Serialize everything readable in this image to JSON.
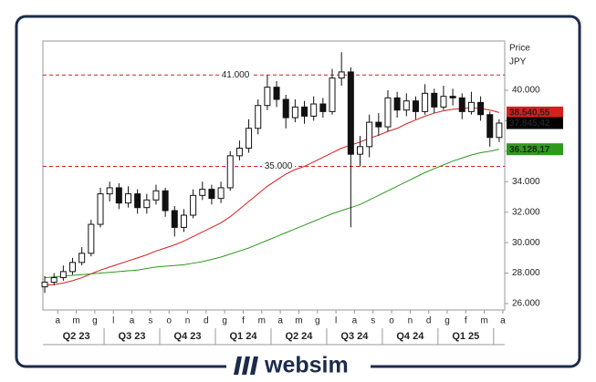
{
  "chart_data": {
    "type": "candlestick",
    "y_axis_title": [
      "Price",
      "JPY"
    ],
    "x": [
      -0.7,
      -0.2,
      0.3,
      0.8,
      1.3,
      1.8,
      2.3,
      2.8,
      3.3,
      3.8,
      4.3,
      4.8,
      5.3,
      5.8,
      6.3,
      6.8,
      7.3,
      7.8,
      8.3,
      8.8,
      9.3,
      9.8,
      10.3,
      10.8,
      11.3,
      11.8,
      12.3,
      12.8,
      13.3,
      13.8,
      14.3,
      14.8,
      15.3,
      15.8,
      16.3,
      16.8,
      17.3,
      17.8,
      18.3,
      18.8,
      19.3,
      19.8,
      20.3,
      20.8,
      21.3,
      21.8,
      22.3,
      22.8,
      23.3,
      23.8
    ],
    "open": [
      27100,
      27400,
      27700,
      28100,
      28700,
      29300,
      31200,
      33200,
      33600,
      32600,
      33200,
      32300,
      32800,
      33400,
      32100,
      31000,
      31800,
      33100,
      33500,
      32900,
      33600,
      35700,
      36200,
      37500,
      39000,
      40200,
      39400,
      38200,
      38900,
      38300,
      39100,
      38600,
      40800,
      41200,
      35800,
      36300,
      37900,
      37600,
      39500,
      38700,
      39300,
      38600,
      39800,
      38900,
      39600,
      39500,
      38600,
      39200,
      38400,
      36900
    ],
    "high": [
      27800,
      28000,
      28500,
      29000,
      29700,
      31500,
      33600,
      34000,
      33900,
      33700,
      33500,
      33200,
      33800,
      33600,
      32400,
      32200,
      33500,
      34000,
      33800,
      34000,
      36000,
      36700,
      38100,
      39400,
      41000,
      40600,
      39700,
      39400,
      39300,
      39600,
      39500,
      41400,
      42500,
      41500,
      37000,
      38400,
      38500,
      40000,
      39900,
      39800,
      39600,
      40400,
      40100,
      40300,
      40100,
      39800,
      39900,
      39600,
      38600,
      38100
    ],
    "low": [
      26700,
      27200,
      27500,
      27900,
      28500,
      29100,
      31000,
      32700,
      32200,
      32300,
      31900,
      31900,
      32500,
      31700,
      30400,
      30700,
      31600,
      32800,
      32500,
      32600,
      33400,
      35400,
      35900,
      37100,
      38700,
      38900,
      37500,
      37900,
      37800,
      38000,
      38200,
      38400,
      40300,
      31000,
      35000,
      35600,
      37000,
      37300,
      38200,
      38300,
      38100,
      38400,
      38500,
      38700,
      39000,
      38100,
      38400,
      38000,
      36300,
      36600
    ],
    "close": [
      27400,
      27700,
      28100,
      28700,
      29300,
      31200,
      33200,
      33600,
      32600,
      33200,
      32300,
      32800,
      33400,
      32100,
      31000,
      31800,
      33100,
      33500,
      32900,
      33600,
      35700,
      36200,
      37500,
      39000,
      40200,
      39400,
      38200,
      38900,
      38300,
      39100,
      38600,
      40800,
      41200,
      35800,
      36300,
      37900,
      37600,
      39500,
      38700,
      39300,
      38600,
      39800,
      38900,
      39600,
      39500,
      38600,
      39200,
      38400,
      36900,
      37845
    ],
    "close_label": "37.845,42",
    "up_color": "#ffffff",
    "down_color": "#111111",
    "wick_color": "#111111",
    "close_box_color": "#000000",
    "series": [
      {
        "color": "#d81e1e",
        "last_label": "38.540,55",
        "values": [
          27200,
          27250,
          27350,
          27500,
          27700,
          27950,
          28200,
          28400,
          28600,
          28800,
          29000,
          29200,
          29450,
          29650,
          29850,
          30100,
          30400,
          30700,
          31000,
          31300,
          31700,
          32200,
          32700,
          33200,
          33700,
          34100,
          34500,
          34800,
          35000,
          35300,
          35600,
          35900,
          36200,
          36400,
          36600,
          36850,
          37050,
          37300,
          37500,
          37800,
          38050,
          38300,
          38500,
          38650,
          38750,
          38800,
          38850,
          38800,
          38700,
          38540.55
        ]
      },
      {
        "color": "#2e9a1c",
        "last_label": "36.128,17",
        "values": [
          27700,
          27750,
          27800,
          27850,
          27900,
          27950,
          28000,
          28050,
          28100,
          28150,
          28200,
          28300,
          28400,
          28450,
          28500,
          28550,
          28650,
          28750,
          28900,
          29050,
          29250,
          29450,
          29650,
          29900,
          30150,
          30400,
          30650,
          30900,
          31150,
          31400,
          31650,
          31900,
          32100,
          32300,
          32500,
          32800,
          33100,
          33400,
          33700,
          34000,
          34300,
          34600,
          34850,
          35100,
          35350,
          35550,
          35750,
          35900,
          36000,
          36128.17
        ]
      }
    ],
    "hlines": [
      {
        "value": 41000,
        "label": "41.000",
        "color": "#d81e1e"
      },
      {
        "value": 35000,
        "label": "35.000",
        "color": "#d81e1e"
      }
    ],
    "xlim": [
      -0.8,
      24.1
    ],
    "xticks": [
      {
        "value": 0,
        "label": "a"
      },
      {
        "value": 1,
        "label": "m"
      },
      {
        "value": 2,
        "label": "g"
      },
      {
        "value": 3,
        "label": "l"
      },
      {
        "value": 4,
        "label": "a"
      },
      {
        "value": 5,
        "label": "s"
      },
      {
        "value": 6,
        "label": "o"
      },
      {
        "value": 7,
        "label": "n"
      },
      {
        "value": 8,
        "label": "d"
      },
      {
        "value": 9,
        "label": "g"
      },
      {
        "value": 10,
        "label": "f"
      },
      {
        "value": 11,
        "label": "m"
      },
      {
        "value": 12,
        "label": "a"
      },
      {
        "value": 13,
        "label": "m"
      },
      {
        "value": 14,
        "label": "g"
      },
      {
        "value": 15,
        "label": "l"
      },
      {
        "value": 16,
        "label": "a"
      },
      {
        "value": 17,
        "label": "s"
      },
      {
        "value": 18,
        "label": "o"
      },
      {
        "value": 19,
        "label": "n"
      },
      {
        "value": 20,
        "label": "d"
      },
      {
        "value": 21,
        "label": "g"
      },
      {
        "value": 22,
        "label": "f"
      },
      {
        "value": 23,
        "label": "m"
      },
      {
        "value": 24,
        "label": "a"
      }
    ],
    "xgroups": [
      {
        "label": "Q2 23",
        "from": 0,
        "to": 3
      },
      {
        "label": "Q3 23",
        "from": 3,
        "to": 6
      },
      {
        "label": "Q4 23",
        "from": 6,
        "to": 9
      },
      {
        "label": "Q1 24",
        "from": 9,
        "to": 12
      },
      {
        "label": "Q2 24",
        "from": 12,
        "to": 15
      },
      {
        "label": "Q3 24",
        "from": 15,
        "to": 18
      },
      {
        "label": "Q4 24",
        "from": 18,
        "to": 21
      },
      {
        "label": "Q1 25",
        "from": 21,
        "to": 24
      }
    ],
    "ylim": [
      25580,
      43230
    ],
    "yticks": [
      {
        "value": 26000,
        "label": "26.000"
      },
      {
        "value": 28000,
        "label": "28.000"
      },
      {
        "value": 30000,
        "label": "30.000"
      },
      {
        "value": 32000,
        "label": "32.000"
      },
      {
        "value": 34000,
        "label": "34.000"
      },
      {
        "value": 36000,
        "label": "36.000"
      },
      {
        "value": 38000,
        "label": "38.000"
      },
      {
        "value": 40000,
        "label": "40.000"
      }
    ]
  },
  "footer": {
    "brand": "websim"
  }
}
